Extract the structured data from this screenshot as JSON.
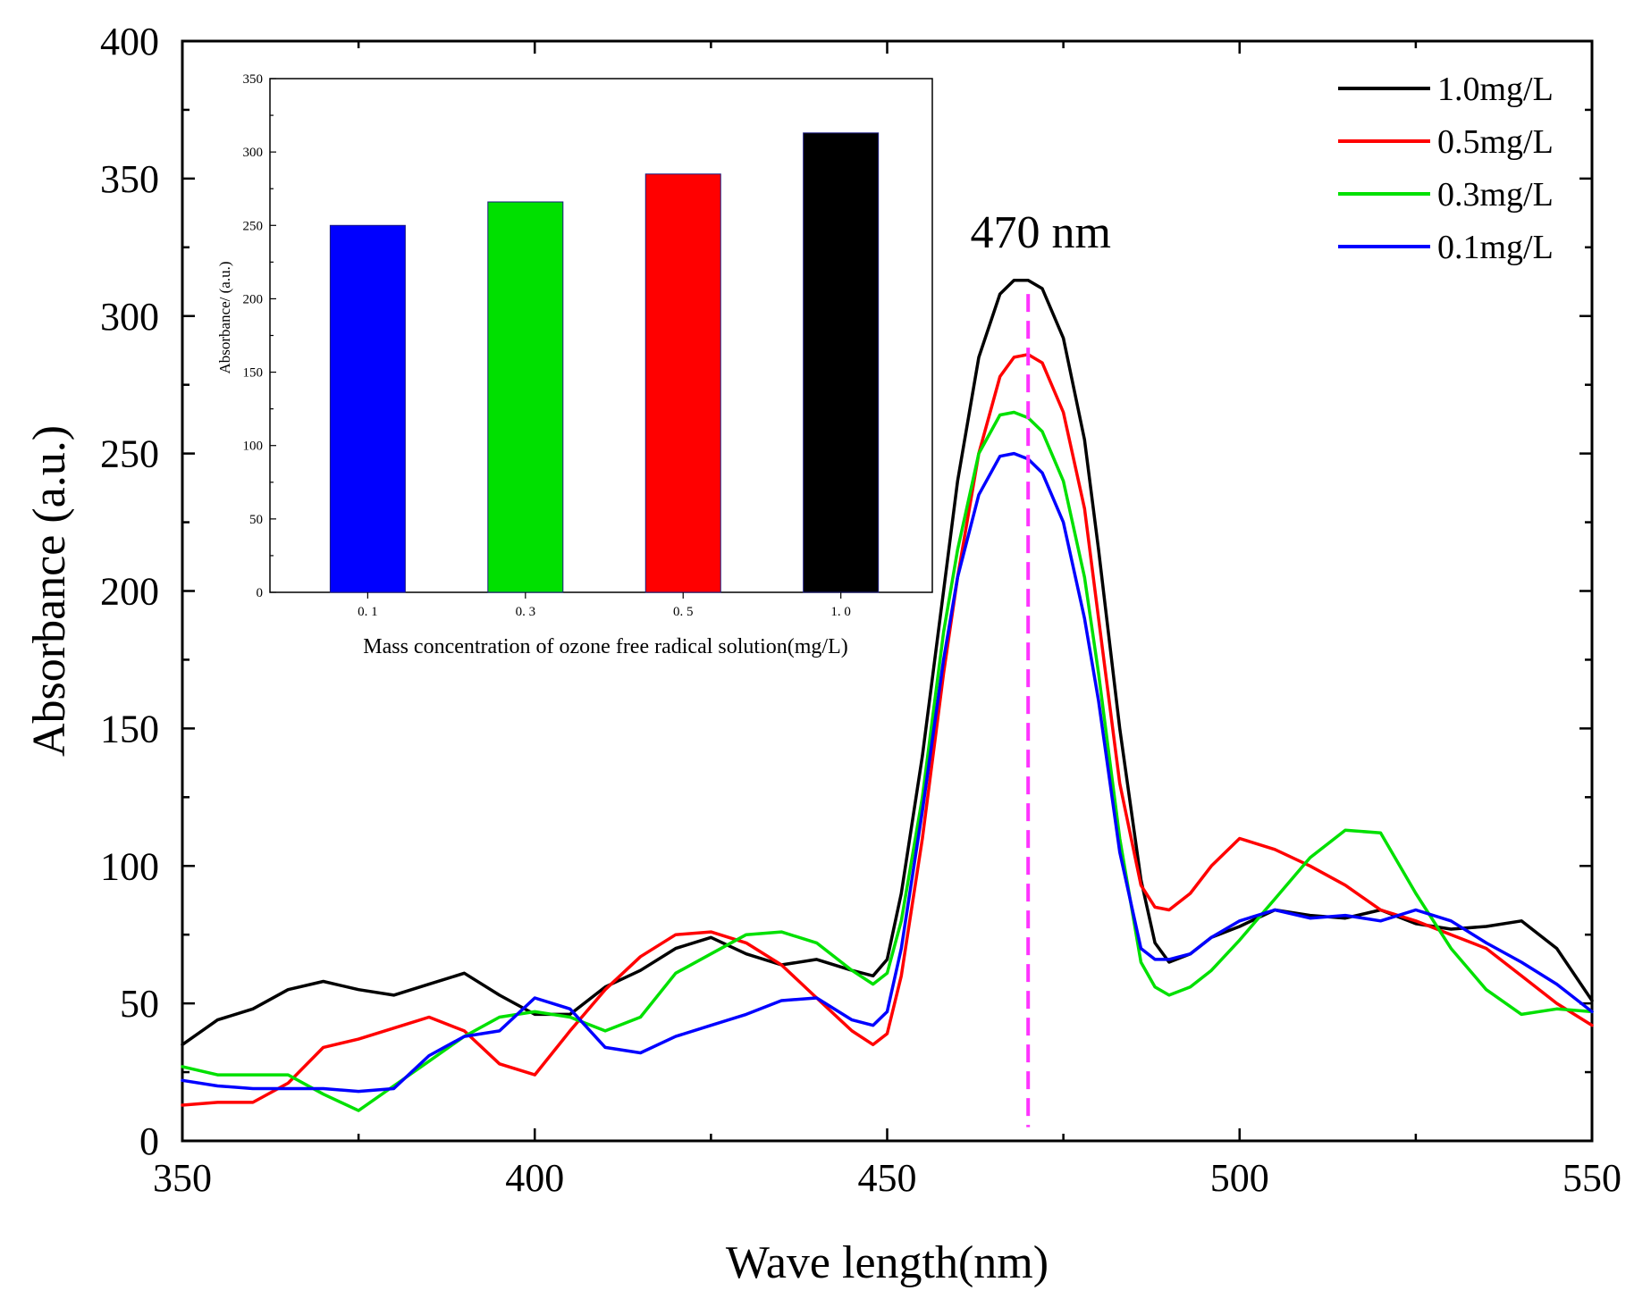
{
  "chart_data": [
    {
      "type": "line",
      "title": "",
      "xlabel": "Wave length(nm)",
      "ylabel": "Absorbance (a.u.)",
      "xlim": [
        350,
        550
      ],
      "ylim": [
        0,
        400
      ],
      "x_ticks": [
        350,
        400,
        450,
        500,
        550
      ],
      "y_ticks": [
        0,
        50,
        100,
        150,
        200,
        250,
        300,
        350,
        400
      ],
      "legend_position": "top-right",
      "annotation": {
        "text": "470 nm",
        "x": 470
      },
      "series": [
        {
          "name": "1.0mg/L",
          "color": "#000000",
          "x": [
            350,
            355,
            360,
            365,
            370,
            375,
            380,
            385,
            390,
            395,
            400,
            405,
            410,
            415,
            420,
            425,
            430,
            435,
            440,
            445,
            448,
            450,
            452,
            455,
            458,
            460,
            463,
            466,
            468,
            470,
            472,
            475,
            478,
            480,
            483,
            486,
            488,
            490,
            493,
            496,
            500,
            505,
            510,
            515,
            520,
            525,
            530,
            535,
            540,
            545,
            550
          ],
          "y": [
            35,
            44,
            48,
            55,
            58,
            55,
            53,
            57,
            61,
            53,
            46,
            46,
            56,
            62,
            70,
            74,
            68,
            64,
            66,
            62,
            60,
            66,
            90,
            140,
            200,
            240,
            285,
            308,
            313,
            313,
            310,
            292,
            255,
            215,
            150,
            95,
            72,
            65,
            68,
            74,
            78,
            84,
            82,
            81,
            84,
            79,
            77,
            78,
            80,
            70,
            51
          ]
        },
        {
          "name": "0.5mg/L",
          "color": "#ff0000",
          "x": [
            350,
            355,
            360,
            365,
            370,
            375,
            380,
            385,
            390,
            395,
            400,
            405,
            410,
            415,
            420,
            425,
            430,
            435,
            440,
            445,
            448,
            450,
            452,
            455,
            458,
            460,
            463,
            466,
            468,
            470,
            472,
            475,
            478,
            480,
            483,
            486,
            488,
            490,
            493,
            496,
            500,
            505,
            510,
            515,
            520,
            525,
            530,
            535,
            540,
            545,
            550
          ],
          "y": [
            13,
            14,
            14,
            21,
            34,
            37,
            41,
            45,
            40,
            28,
            24,
            40,
            55,
            67,
            75,
            76,
            72,
            64,
            52,
            40,
            35,
            39,
            60,
            110,
            170,
            205,
            250,
            278,
            285,
            286,
            283,
            265,
            230,
            190,
            130,
            93,
            85,
            84,
            90,
            100,
            110,
            106,
            100,
            93,
            84,
            80,
            75,
            70,
            60,
            50,
            42
          ],
          "_note": "visual estimates"
        },
        {
          "name": "0.3mg/L",
          "color": "#00e000",
          "x": [
            350,
            355,
            360,
            365,
            370,
            375,
            380,
            385,
            390,
            395,
            400,
            405,
            410,
            415,
            420,
            425,
            430,
            435,
            440,
            445,
            448,
            450,
            452,
            455,
            458,
            460,
            463,
            466,
            468,
            470,
            472,
            475,
            478,
            480,
            483,
            486,
            488,
            490,
            493,
            496,
            500,
            505,
            510,
            515,
            520,
            525,
            530,
            535,
            540,
            545,
            550
          ],
          "y": [
            27,
            24,
            24,
            24,
            17,
            11,
            20,
            29,
            38,
            45,
            47,
            45,
            40,
            45,
            61,
            68,
            75,
            76,
            72,
            62,
            57,
            61,
            80,
            125,
            185,
            215,
            250,
            264,
            265,
            263,
            258,
            240,
            205,
            170,
            110,
            65,
            56,
            53,
            56,
            62,
            73,
            88,
            103,
            113,
            112,
            90,
            70,
            55,
            46,
            48,
            47
          ]
        },
        {
          "name": "0.1mg/L",
          "color": "#0000ff",
          "x": [
            350,
            355,
            360,
            365,
            370,
            375,
            380,
            385,
            390,
            395,
            400,
            405,
            410,
            415,
            420,
            425,
            430,
            435,
            440,
            445,
            448,
            450,
            452,
            455,
            458,
            460,
            463,
            466,
            468,
            470,
            472,
            475,
            478,
            480,
            483,
            486,
            488,
            490,
            493,
            496,
            500,
            505,
            510,
            515,
            520,
            525,
            530,
            535,
            540,
            545,
            550
          ],
          "y": [
            22,
            20,
            19,
            19,
            19,
            18,
            19,
            31,
            38,
            40,
            52,
            48,
            34,
            32,
            38,
            42,
            46,
            51,
            52,
            44,
            42,
            47,
            70,
            120,
            175,
            205,
            235,
            249,
            250,
            248,
            243,
            225,
            190,
            160,
            105,
            70,
            66,
            66,
            68,
            74,
            80,
            84,
            81,
            82,
            80,
            84,
            80,
            72,
            65,
            57,
            47
          ]
        }
      ]
    },
    {
      "type": "bar",
      "title": "",
      "xlabel": "Mass concentration of ozone free radical solution(mg/L)",
      "ylabel": "Absorbance/ (a.u.)",
      "ylim": [
        0,
        350
      ],
      "y_ticks": [
        0,
        50,
        100,
        150,
        200,
        250,
        300,
        350
      ],
      "categories": [
        "0. 1",
        "0. 3",
        "0. 5",
        "1. 0"
      ],
      "values": [
        250,
        266,
        285,
        313
      ],
      "colors": [
        "#0000ff",
        "#00e000",
        "#ff0000",
        "#000000"
      ]
    }
  ]
}
